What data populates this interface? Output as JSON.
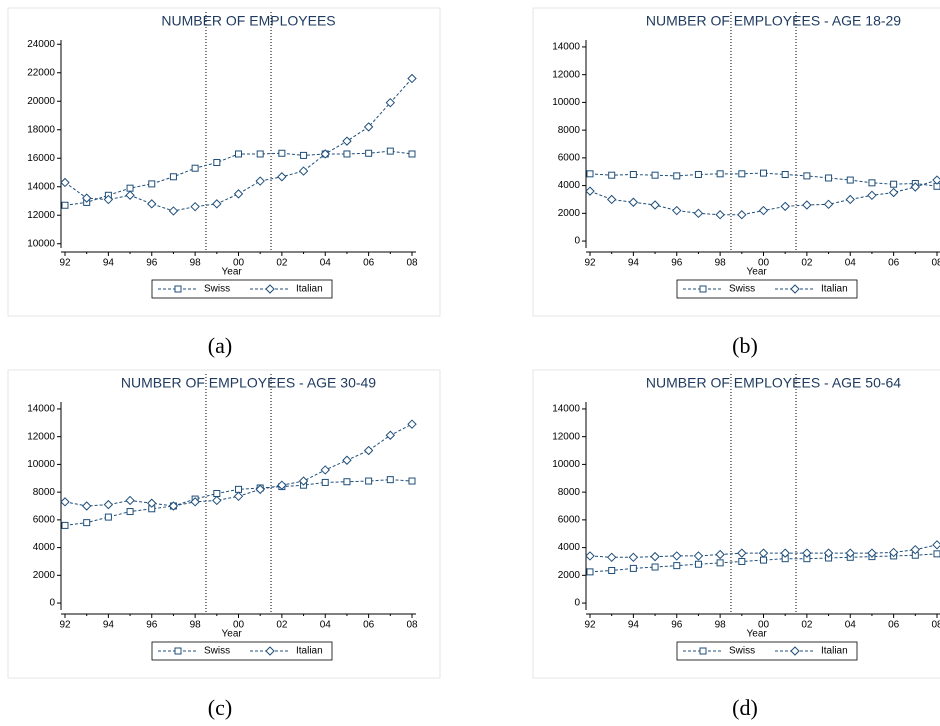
{
  "chart_data": [
    {
      "type": "line",
      "title": "NUMBER OF EMPLOYEES",
      "caption": "(a)",
      "x_label": "Year",
      "categories": [
        "92",
        null,
        "94",
        null,
        "96",
        null,
        "98",
        null,
        "00",
        null,
        "02",
        null,
        "04",
        null,
        "06",
        null,
        "08"
      ],
      "ylim": [
        9700,
        24300
      ],
      "yticks": [
        10000,
        12000,
        14000,
        16000,
        18000,
        20000,
        22000,
        24000
      ],
      "vlines": [
        6.5,
        9.5
      ],
      "series": [
        {
          "name": "Swiss",
          "color": "#1f4e79",
          "marker": "square",
          "values": [
            12700,
            12900,
            13400,
            13900,
            14200,
            14700,
            15300,
            15700,
            16300,
            16300,
            16350,
            16200,
            16300,
            16300,
            16350,
            16500,
            16300
          ]
        },
        {
          "name": "Italian",
          "color": "#1f4e79",
          "marker": "diamond",
          "values": [
            14300,
            13200,
            13100,
            13400,
            12800,
            12300,
            12600,
            12800,
            13500,
            14400,
            14700,
            15100,
            16300,
            17200,
            18200,
            19900,
            21600
          ]
        }
      ]
    },
    {
      "type": "line",
      "title": "NUMBER OF EMPLOYEES - AGE 18-29",
      "caption": "(b)",
      "x_label": "Year",
      "categories": [
        "92",
        null,
        "94",
        null,
        "96",
        null,
        "98",
        null,
        "00",
        null,
        "02",
        null,
        "04",
        null,
        "06",
        null,
        "08"
      ],
      "ylim": [
        -500,
        14500
      ],
      "yticks": [
        0,
        2000,
        4000,
        6000,
        8000,
        10000,
        12000,
        14000
      ],
      "vlines": [
        6.5,
        9.5
      ],
      "series": [
        {
          "name": "Swiss",
          "color": "#1f4e79",
          "marker": "square",
          "values": [
            4850,
            4750,
            4800,
            4750,
            4700,
            4800,
            4850,
            4850,
            4900,
            4800,
            4700,
            4550,
            4400,
            4200,
            4100,
            4150,
            3950
          ]
        },
        {
          "name": "Italian",
          "color": "#1f4e79",
          "marker": "diamond",
          "values": [
            3600,
            3000,
            2800,
            2600,
            2200,
            2000,
            1900,
            1900,
            2200,
            2500,
            2600,
            2650,
            3000,
            3300,
            3500,
            3900,
            4400
          ]
        }
      ]
    },
    {
      "type": "line",
      "title": "NUMBER OF EMPLOYEES - AGE 30-49",
      "caption": "(c)",
      "x_label": "Year",
      "categories": [
        "92",
        null,
        "94",
        null,
        "96",
        null,
        "98",
        null,
        "00",
        null,
        "02",
        null,
        "04",
        null,
        "06",
        null,
        "08"
      ],
      "ylim": [
        -500,
        14500
      ],
      "yticks": [
        0,
        2000,
        4000,
        6000,
        8000,
        10000,
        12000,
        14000
      ],
      "vlines": [
        6.5,
        9.5
      ],
      "series": [
        {
          "name": "Swiss",
          "color": "#1f4e79",
          "marker": "square",
          "values": [
            5600,
            5800,
            6200,
            6600,
            6800,
            7000,
            7500,
            7900,
            8200,
            8300,
            8400,
            8500,
            8700,
            8750,
            8800,
            8900,
            8800
          ]
        },
        {
          "name": "Italian",
          "color": "#1f4e79",
          "marker": "diamond",
          "values": [
            7300,
            7000,
            7100,
            7400,
            7200,
            7000,
            7300,
            7400,
            7700,
            8200,
            8500,
            8800,
            9600,
            10300,
            11000,
            12100,
            12900
          ]
        }
      ]
    },
    {
      "type": "line",
      "title": "NUMBER OF EMPLOYEES - AGE 50-64",
      "caption": "(d)",
      "x_label": "Year",
      "categories": [
        "92",
        null,
        "94",
        null,
        "96",
        null,
        "98",
        null,
        "00",
        null,
        "02",
        null,
        "04",
        null,
        "06",
        null,
        "08"
      ],
      "ylim": [
        -500,
        14500
      ],
      "yticks": [
        0,
        2000,
        4000,
        6000,
        8000,
        10000,
        12000,
        14000
      ],
      "vlines": [
        6.5,
        9.5
      ],
      "series": [
        {
          "name": "Swiss",
          "color": "#1f4e79",
          "marker": "square",
          "values": [
            2250,
            2350,
            2500,
            2600,
            2700,
            2800,
            2900,
            3000,
            3100,
            3200,
            3200,
            3250,
            3300,
            3350,
            3400,
            3450,
            3550
          ]
        },
        {
          "name": "Italian",
          "color": "#1f4e79",
          "marker": "diamond",
          "values": [
            3400,
            3300,
            3300,
            3350,
            3400,
            3400,
            3500,
            3600,
            3600,
            3600,
            3600,
            3600,
            3600,
            3600,
            3650,
            3850,
            4200
          ]
        }
      ]
    }
  ]
}
